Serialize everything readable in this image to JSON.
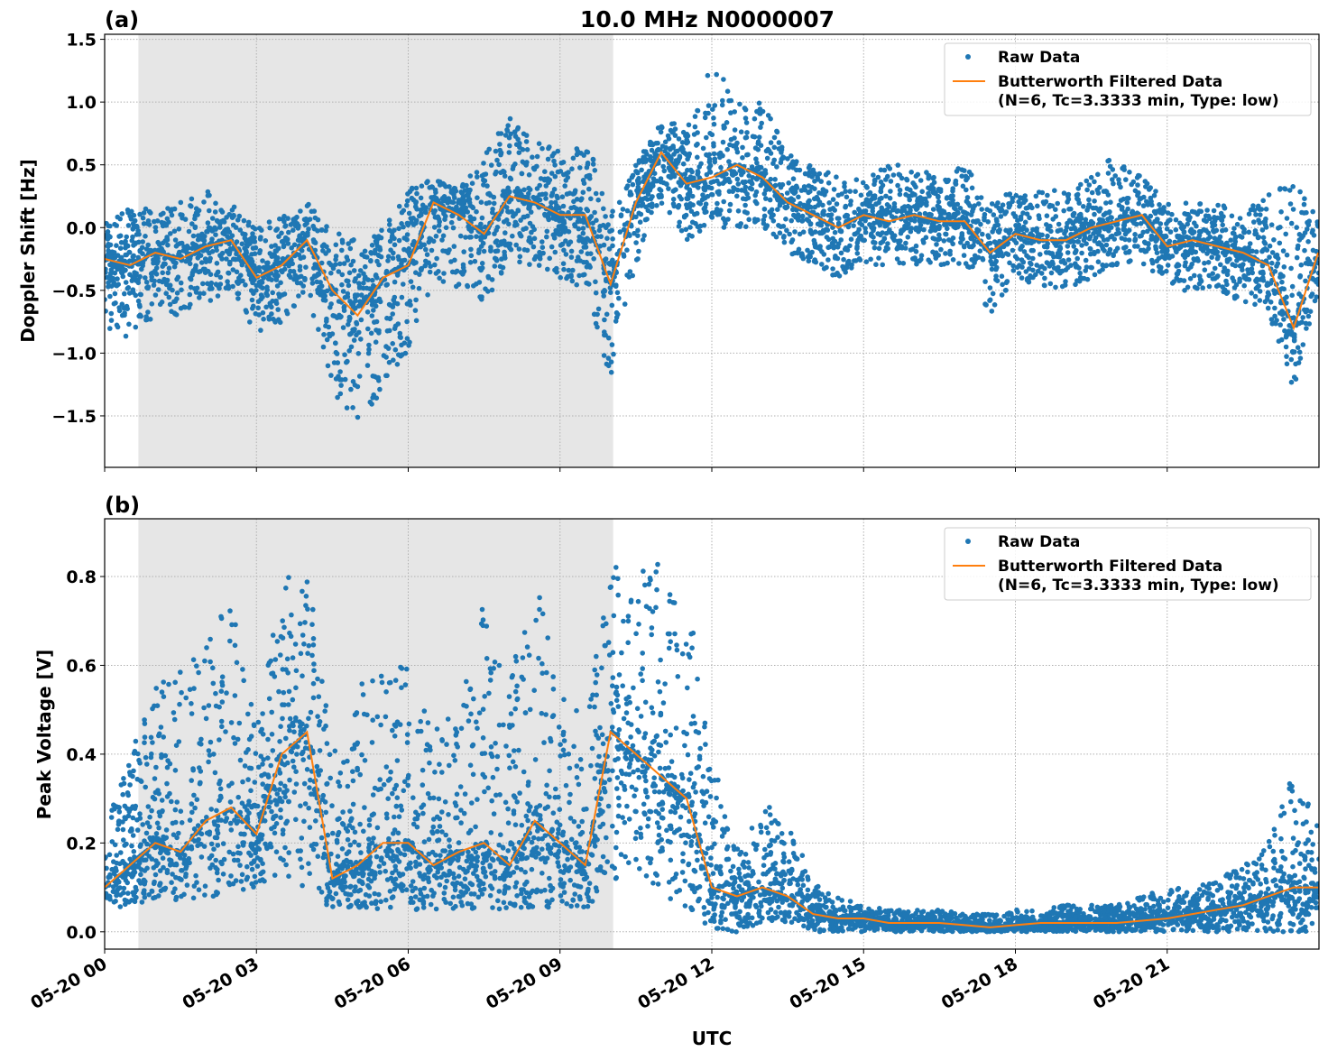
{
  "title": "10.0 MHz N0000007",
  "xlabel": "UTC",
  "x_ticks": [
    "05-20 00",
    "05-20 03",
    "05-20 06",
    "05-20 09",
    "05-20 12",
    "05-20 15",
    "05-20 18",
    "05-20 21"
  ],
  "x_range": [
    "05-20 00:00",
    "05-21 00:00"
  ],
  "shaded_span": [
    "05-20 00:40",
    "05-20 10:03"
  ],
  "colors": {
    "raw": "#1f77b4",
    "filtered": "#ff7f0e",
    "shade": "#e6e6e6",
    "grid": "#b0b0b0"
  },
  "chart_data": [
    {
      "type": "scatter+line",
      "panel_label": "(a)",
      "ylabel": "Doppler Shift [Hz]",
      "ylim": [
        -1.91,
        1.54
      ],
      "y_ticks": [
        "1.5",
        "1.0",
        "0.5",
        "0.0",
        "−0.5",
        "−1.0",
        "−1.5"
      ],
      "y_tick_values": [
        1.5,
        1.0,
        0.5,
        0.0,
        -0.5,
        -1.0,
        -1.5
      ],
      "grid": true,
      "legend_placement": "upper-right",
      "legend": [
        "Raw Data",
        "Butterworth Filtered Data",
        "(N=6, Tc=3.3333 min, Type: low)"
      ],
      "x": [
        "05-20 00:00",
        "05-20 00:30",
        "05-20 01:00",
        "05-20 01:30",
        "05-20 02:00",
        "05-20 02:30",
        "05-20 03:00",
        "05-20 03:30",
        "05-20 04:00",
        "05-20 04:30",
        "05-20 05:00",
        "05-20 05:30",
        "05-20 06:00",
        "05-20 06:30",
        "05-20 07:00",
        "05-20 07:30",
        "05-20 08:00",
        "05-20 08:30",
        "05-20 09:00",
        "05-20 09:30",
        "05-20 10:00",
        "05-20 10:30",
        "05-20 11:00",
        "05-20 11:30",
        "05-20 12:00",
        "05-20 12:30",
        "05-20 13:00",
        "05-20 13:30",
        "05-20 14:00",
        "05-20 14:30",
        "05-20 15:00",
        "05-20 15:30",
        "05-20 16:00",
        "05-20 16:30",
        "05-20 17:00",
        "05-20 17:30",
        "05-20 18:00",
        "05-20 18:30",
        "05-20 19:00",
        "05-20 19:30",
        "05-20 20:00",
        "05-20 20:30",
        "05-20 21:00",
        "05-20 21:30",
        "05-20 22:00",
        "05-20 22:30",
        "05-20 23:00",
        "05-20 23:30",
        "05-20 23:59"
      ],
      "series": [
        {
          "name": "Butterworth Filtered Data",
          "values": [
            -0.25,
            -0.3,
            -0.2,
            -0.25,
            -0.15,
            -0.1,
            -0.4,
            -0.3,
            -0.1,
            -0.5,
            -0.7,
            -0.4,
            -0.3,
            0.2,
            0.1,
            -0.05,
            0.25,
            0.2,
            0.1,
            0.1,
            -0.45,
            0.2,
            0.6,
            0.35,
            0.4,
            0.5,
            0.4,
            0.2,
            0.1,
            0.0,
            0.1,
            0.05,
            0.1,
            0.05,
            0.05,
            -0.2,
            -0.05,
            -0.1,
            -0.1,
            0.0,
            0.05,
            0.1,
            -0.15,
            -0.1,
            -0.15,
            -0.2,
            -0.3,
            -0.8,
            -0.2
          ]
        },
        {
          "name": "Raw Data",
          "min": [
            -0.8,
            -0.9,
            -0.7,
            -0.7,
            -0.6,
            -0.5,
            -0.85,
            -0.75,
            -0.5,
            -1.3,
            -1.7,
            -1.3,
            -1.0,
            -0.4,
            -0.5,
            -0.6,
            -0.3,
            -0.3,
            -0.4,
            -0.5,
            -1.2,
            -0.3,
            0.2,
            -0.1,
            0.0,
            0.0,
            0.0,
            -0.2,
            -0.3,
            -0.4,
            -0.3,
            -0.3,
            -0.3,
            -0.3,
            -0.3,
            -0.7,
            -0.4,
            -0.5,
            -0.5,
            -0.4,
            -0.3,
            -0.3,
            -0.5,
            -0.5,
            -0.5,
            -0.6,
            -0.7,
            -1.3,
            -0.5
          ],
          "max": [
            0.1,
            0.15,
            0.15,
            0.2,
            0.3,
            0.2,
            0.0,
            0.1,
            0.2,
            0.0,
            -0.1,
            0.0,
            0.3,
            0.4,
            0.3,
            0.6,
            0.9,
            0.7,
            0.6,
            0.8,
            0.1,
            0.5,
            0.9,
            0.8,
            1.3,
            1.1,
            1.0,
            0.6,
            0.5,
            0.4,
            0.4,
            0.5,
            0.5,
            0.4,
            0.5,
            0.2,
            0.3,
            0.3,
            0.3,
            0.4,
            0.6,
            0.4,
            0.2,
            0.2,
            0.2,
            0.1,
            0.3,
            0.4,
            0.1
          ]
        }
      ]
    },
    {
      "type": "scatter+line",
      "panel_label": "(b)",
      "ylabel": "Peak Voltage [V]",
      "ylim": [
        -0.039,
        0.93
      ],
      "y_ticks": [
        "0.8",
        "0.6",
        "0.4",
        "0.2",
        "0.0"
      ],
      "y_tick_values": [
        0.8,
        0.6,
        0.4,
        0.2,
        0.0
      ],
      "grid": true,
      "legend_placement": "upper-right",
      "legend": [
        "Raw Data",
        "Butterworth Filtered Data",
        "(N=6, Tc=3.3333 min, Type: low)"
      ],
      "series": [
        {
          "name": "Butterworth Filtered Data",
          "values": [
            0.1,
            0.15,
            0.2,
            0.18,
            0.25,
            0.28,
            0.22,
            0.4,
            0.45,
            0.12,
            0.15,
            0.2,
            0.2,
            0.15,
            0.18,
            0.2,
            0.15,
            0.25,
            0.2,
            0.15,
            0.45,
            0.4,
            0.35,
            0.3,
            0.1,
            0.08,
            0.1,
            0.08,
            0.04,
            0.03,
            0.03,
            0.02,
            0.02,
            0.02,
            0.015,
            0.01,
            0.015,
            0.02,
            0.02,
            0.02,
            0.02,
            0.025,
            0.03,
            0.04,
            0.05,
            0.06,
            0.08,
            0.1,
            0.1
          ]
        },
        {
          "name": "Raw Data",
          "min": [
            0.05,
            0.06,
            0.07,
            0.07,
            0.08,
            0.08,
            0.1,
            0.12,
            0.1,
            0.05,
            0.05,
            0.05,
            0.05,
            0.05,
            0.05,
            0.05,
            0.05,
            0.05,
            0.05,
            0.05,
            0.1,
            0.15,
            0.08,
            0.05,
            0.0,
            0.0,
            0.02,
            0.02,
            0.0,
            0.0,
            0.0,
            0.0,
            0.0,
            0.0,
            0.0,
            0.0,
            0.0,
            0.0,
            0.0,
            0.0,
            0.0,
            0.0,
            0.0,
            0.0,
            0.0,
            0.0,
            0.0,
            0.0,
            0.0
          ],
          "max": [
            0.25,
            0.4,
            0.55,
            0.6,
            0.65,
            0.75,
            0.45,
            0.8,
            0.88,
            0.4,
            0.55,
            0.6,
            0.6,
            0.5,
            0.5,
            0.75,
            0.55,
            0.85,
            0.6,
            0.45,
            0.85,
            0.8,
            0.85,
            0.8,
            0.4,
            0.2,
            0.3,
            0.25,
            0.12,
            0.08,
            0.06,
            0.05,
            0.05,
            0.05,
            0.04,
            0.04,
            0.05,
            0.05,
            0.06,
            0.06,
            0.06,
            0.08,
            0.1,
            0.1,
            0.12,
            0.15,
            0.2,
            0.36,
            0.25
          ]
        }
      ]
    }
  ]
}
